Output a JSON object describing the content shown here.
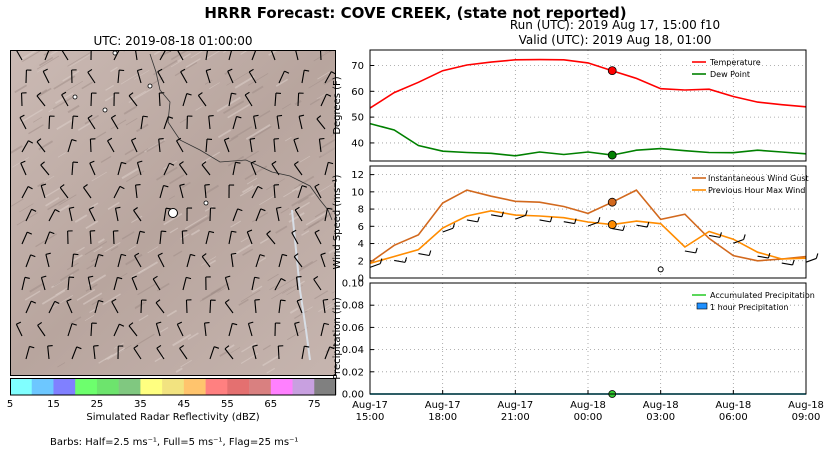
{
  "main_title": "HRRR Forecast: COVE CREEK, (state not reported)",
  "run_line": "Run (UTC): 2019 Aug 17, 15:00 f10",
  "valid_line": "Valid (UTC): 2019 Aug 18, 01:00",
  "map": {
    "title": "UTC: 2019-08-18 01:00:00",
    "colorbar_label": "Simulated Radar Reflectivity (dBZ)",
    "colorbar_ticks": [
      "5",
      "15",
      "25",
      "35",
      "45",
      "55",
      "65",
      "75"
    ],
    "colorbar_colors": [
      "#80ffff",
      "#6dc7ff",
      "#8080ff",
      "#6dff6d",
      "#6de46d",
      "#80c880",
      "#ffff80",
      "#f2e380",
      "#ffc46d",
      "#ff8080",
      "#e47070",
      "#d98080",
      "#ff80ff",
      "#c8a0e0",
      "#808080"
    ],
    "barbs_note": "Barbs: Half=2.5 ms⁻¹, Full=5 ms⁻¹, Flag=25 ms⁻¹"
  },
  "chart_data": [
    {
      "type": "line",
      "ylabel": "Degrees (F)",
      "ylim": [
        33,
        76
      ],
      "yticks": [
        40,
        50,
        60,
        70
      ],
      "grid": true,
      "legend_position": "top-right",
      "x": [
        "2019-08-17 15:00",
        "2019-08-17 16:00",
        "2019-08-17 17:00",
        "2019-08-17 18:00",
        "2019-08-17 19:00",
        "2019-08-17 20:00",
        "2019-08-17 21:00",
        "2019-08-17 22:00",
        "2019-08-17 23:00",
        "2019-08-18 00:00",
        "2019-08-18 01:00",
        "2019-08-18 02:00",
        "2019-08-18 03:00",
        "2019-08-18 04:00",
        "2019-08-18 05:00",
        "2019-08-18 06:00",
        "2019-08-18 07:00",
        "2019-08-18 08:00",
        "2019-08-18 09:00"
      ],
      "series": [
        {
          "name": "Temperature",
          "color": "#ff0000",
          "values": [
            53.5,
            59.5,
            63.5,
            68,
            70.2,
            71.3,
            72.2,
            72.3,
            72.2,
            71,
            68,
            65,
            61,
            60.5,
            60.8,
            58,
            55.8,
            54.8,
            54
          ]
        },
        {
          "name": "Dew Point",
          "color": "#008000",
          "values": [
            47.5,
            45,
            39,
            36.8,
            36.3,
            36,
            35,
            36.5,
            35.5,
            36.5,
            35.3,
            37.2,
            37.8,
            37,
            36.3,
            36.2,
            37.2,
            36.5,
            35.8
          ]
        }
      ],
      "highlight_x": "2019-08-18 01:00"
    },
    {
      "type": "line",
      "ylabel": "Wind Speed (ms⁻¹)",
      "ylim": [
        0,
        13
      ],
      "yticks": [
        0,
        2,
        4,
        6,
        8,
        10,
        12
      ],
      "grid": true,
      "legend_position": "top-right",
      "x": [
        "2019-08-17 15:00",
        "2019-08-17 16:00",
        "2019-08-17 17:00",
        "2019-08-17 18:00",
        "2019-08-17 19:00",
        "2019-08-17 20:00",
        "2019-08-17 21:00",
        "2019-08-17 22:00",
        "2019-08-17 23:00",
        "2019-08-18 00:00",
        "2019-08-18 01:00",
        "2019-08-18 02:00",
        "2019-08-18 03:00",
        "2019-08-18 04:00",
        "2019-08-18 05:00",
        "2019-08-18 06:00",
        "2019-08-18 07:00",
        "2019-08-18 08:00",
        "2019-08-18 09:00"
      ],
      "series": [
        {
          "name": "Instantaneous Wind Gust",
          "color": "#d2691e",
          "values": [
            1.8,
            3.8,
            5,
            8.7,
            10.2,
            9.5,
            8.9,
            8.8,
            8.3,
            7.5,
            8.8,
            10.2,
            6.8,
            7.4,
            4.6,
            2.6,
            2,
            2.2,
            2.5
          ]
        },
        {
          "name": "Previous Hour Max Wind",
          "color": "#ff8c00",
          "values": [
            1.7,
            2.5,
            3.3,
            5.8,
            7.2,
            7.8,
            7.3,
            7.2,
            7,
            6.5,
            6.2,
            6.6,
            6.3,
            3.6,
            5.4,
            4.5,
            3,
            2.2,
            2.3
          ]
        }
      ],
      "highlight_x": "2019-08-18 01:00",
      "extra_point": {
        "x": "2019-08-18 03:00",
        "y": 1.0
      }
    },
    {
      "type": "line",
      "ylabel": "Precipitation (in)",
      "ylim": [
        0,
        0.1
      ],
      "yticks": [
        "0.00",
        "0.02",
        "0.04",
        "0.06",
        "0.08",
        "0.10"
      ],
      "grid": true,
      "legend_position": "top-right",
      "xtick_labels": [
        [
          "Aug-17",
          "15:00"
        ],
        [
          "Aug-17",
          "18:00"
        ],
        [
          "Aug-17",
          "21:00"
        ],
        [
          "Aug-18",
          "00:00"
        ],
        [
          "Aug-18",
          "03:00"
        ],
        [
          "Aug-18",
          "06:00"
        ],
        [
          "Aug-18",
          "09:00"
        ]
      ],
      "series": [
        {
          "name": "Accumulated Precipitation",
          "color": "#32cd32",
          "values": [
            0,
            0,
            0,
            0,
            0,
            0,
            0,
            0,
            0,
            0,
            0,
            0,
            0,
            0,
            0,
            0,
            0,
            0,
            0
          ]
        },
        {
          "name": "1 hour Precipitation",
          "color": "#1e90ff",
          "values": [
            0,
            0,
            0,
            0,
            0,
            0,
            0,
            0,
            0,
            0,
            0,
            0,
            0,
            0,
            0,
            0,
            0,
            0,
            0
          ]
        }
      ],
      "highlight_x": "2019-08-18 01:00"
    }
  ]
}
